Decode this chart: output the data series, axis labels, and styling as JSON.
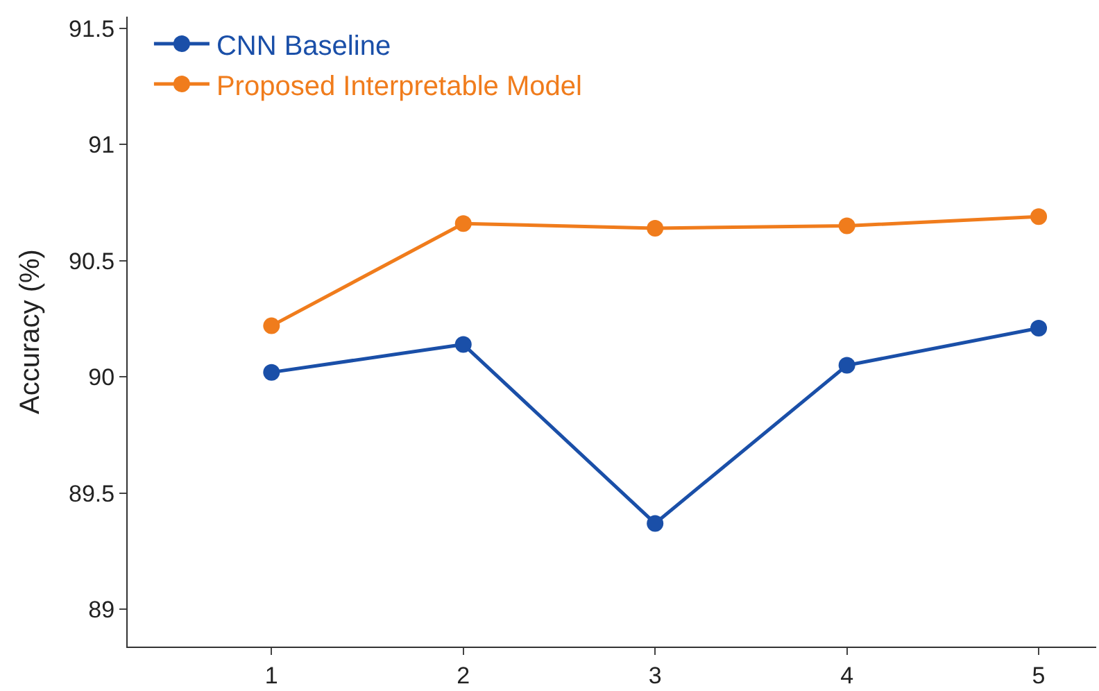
{
  "chart_data": {
    "type": "line",
    "ylabel": "Accuracy (%)",
    "x": [
      1,
      2,
      3,
      4,
      5
    ],
    "series": [
      {
        "name": "CNN Baseline",
        "color": "#1a4fa8",
        "values": [
          90.02,
          90.14,
          89.37,
          90.05,
          90.21
        ]
      },
      {
        "name": "Proposed Interpretable Model",
        "color": "#f07c1c",
        "values": [
          90.22,
          90.66,
          90.64,
          90.65,
          90.69
        ]
      }
    ],
    "xlim": [
      0.25,
      5.3
    ],
    "xticks": [
      1,
      2,
      3,
      4,
      5
    ],
    "ylim": [
      88.84,
      91.55
    ],
    "yticks": [
      {
        "value": 89,
        "label": "89"
      },
      {
        "value": 89.5,
        "label": "89.5"
      },
      {
        "value": 90,
        "label": "90"
      },
      {
        "value": 90.5,
        "label": "90.5"
      },
      {
        "value": 91,
        "label": "91"
      },
      {
        "value": 91.5,
        "label": "91.5"
      }
    ],
    "legend": "top left",
    "marker": "circle",
    "line_style": "solid"
  }
}
